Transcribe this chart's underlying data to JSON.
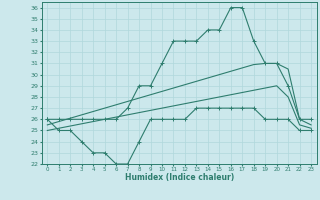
{
  "xlabel": "Humidex (Indice chaleur)",
  "x": [
    0,
    1,
    2,
    3,
    4,
    5,
    6,
    7,
    8,
    9,
    10,
    11,
    12,
    13,
    14,
    15,
    16,
    17,
    18,
    19,
    20,
    21,
    22,
    23
  ],
  "y_max": [
    26,
    26,
    26,
    26,
    26,
    26,
    26,
    27,
    29,
    29,
    31,
    33,
    33,
    33,
    34,
    34,
    36,
    36,
    33,
    31,
    31,
    29,
    26,
    26
  ],
  "y_mean": [
    25.5,
    25.8,
    26.1,
    26.4,
    26.7,
    27.0,
    27.3,
    27.6,
    27.9,
    28.2,
    28.5,
    28.8,
    29.1,
    29.4,
    29.7,
    30.0,
    30.3,
    30.6,
    30.9,
    31.0,
    31.0,
    30.5,
    26.0,
    25.5
  ],
  "y_min": [
    25.0,
    25.2,
    25.4,
    25.6,
    25.8,
    26.0,
    26.2,
    26.4,
    26.6,
    26.8,
    27.0,
    27.2,
    27.4,
    27.6,
    27.8,
    28.0,
    28.2,
    28.4,
    28.6,
    28.8,
    29.0,
    28.0,
    25.5,
    25.2
  ],
  "y_cur": [
    26,
    25,
    25,
    24,
    23,
    23,
    22,
    22,
    24,
    26,
    26,
    26,
    26,
    27,
    27,
    27,
    27,
    27,
    27,
    26,
    26,
    26,
    25,
    25
  ],
  "color": "#2e7d6e",
  "bg_color": "#cce8ec",
  "grid_color": "#b0d8dc",
  "ylim": [
    22,
    36.5
  ],
  "ytick_min": 22,
  "ytick_max": 36,
  "xtick_max": 23
}
